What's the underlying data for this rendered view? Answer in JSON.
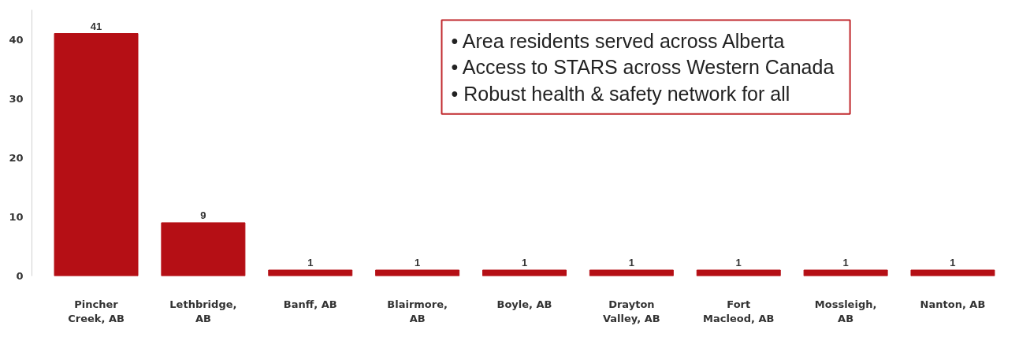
{
  "chart_data": {
    "type": "bar",
    "categories": [
      "Pincher Creek, AB",
      "Lethbridge, AB",
      "Banff, AB",
      "Blairmore, AB",
      "Boyle, AB",
      "Drayton Valley, AB",
      "Fort Macleod, AB",
      "Mossleigh, AB",
      "Nanton, AB"
    ],
    "values": [
      41,
      9,
      1,
      1,
      1,
      1,
      1,
      1,
      1
    ],
    "color": "#b50f15",
    "ylim": [
      0,
      45
    ],
    "yticks": [
      0,
      10,
      20,
      30,
      40
    ],
    "grid": false,
    "data_labels": true,
    "annotations": [
      "•  Area residents served across Alberta",
      "•  Access to STARS across Western Canada",
      "•  Robust health & safety network for all"
    ]
  }
}
